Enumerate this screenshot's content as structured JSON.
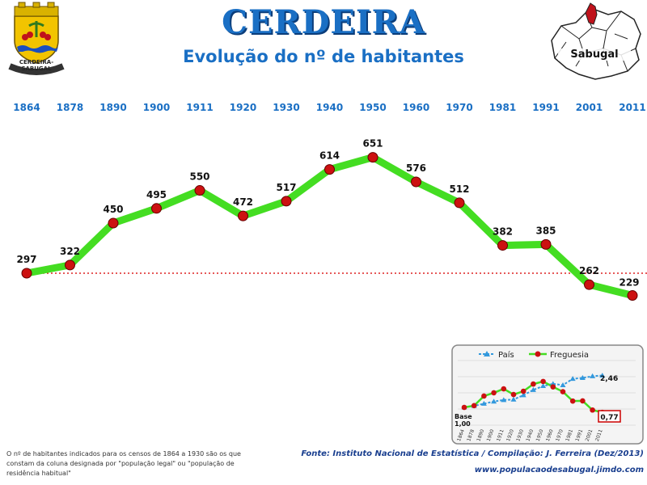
{
  "header": {
    "title": "CERDEIRA",
    "subtitle": "Evolução do nº de habitantes",
    "crest_text": "CERDEIRA-SABUGAL",
    "region_label": "Sabugal"
  },
  "colors": {
    "title": "#1a6fc4",
    "year_label": "#1a6fc4",
    "line": "#44dd22",
    "marker": "#cc1111",
    "reference_line": "#dd2222",
    "country_line": "#3399dd",
    "source_text": "#1a3f8f"
  },
  "chart_data": [
    {
      "type": "line",
      "title": "Evolução do nº de habitantes",
      "x": [
        "1864",
        "1878",
        "1890",
        "1900",
        "1911",
        "1920",
        "1930",
        "1940",
        "1950",
        "1960",
        "1970",
        "1981",
        "1991",
        "2001",
        "2011"
      ],
      "series": [
        {
          "name": "Freguesia",
          "values": [
            297,
            322,
            450,
            495,
            550,
            472,
            517,
            614,
            651,
            576,
            512,
            382,
            385,
            262,
            229
          ]
        }
      ],
      "reference_value": 297,
      "ylim": [
        200,
        700
      ],
      "grid": false
    },
    {
      "type": "line",
      "title": "",
      "x": [
        "1864",
        "1878",
        "1890",
        "1900",
        "1911",
        "1920",
        "1930",
        "1940",
        "1950",
        "1960",
        "1970",
        "1981",
        "1991",
        "2001",
        "2011"
      ],
      "series": [
        {
          "name": "País",
          "values": [
            1.0,
            1.07,
            1.17,
            1.27,
            1.34,
            1.36,
            1.56,
            1.8,
            1.98,
            2.08,
            2.02,
            2.31,
            2.35,
            2.43,
            2.46
          ]
        },
        {
          "name": "Freguesia",
          "values": [
            1.0,
            1.08,
            1.52,
            1.67,
            1.85,
            1.59,
            1.74,
            2.07,
            2.19,
            1.94,
            1.72,
            1.29,
            1.3,
            0.88,
            0.77
          ]
        }
      ],
      "base_label": "Base",
      "base_value": "1,00",
      "end_label_country": "2,46",
      "end_label_parish": "0,77",
      "ylim": [
        0.5,
        2.8
      ],
      "legend": "top"
    }
  ],
  "footer": {
    "note": "O nº de habitantes indicados para os censos de 1864 a 1930 são os que constam da coluna designada por \"população legal\" ou \"população de residência habitual\"",
    "source": "Fonte: Instituto Nacional de Estatística / Compilação: J. Ferreira (Dez/2013)",
    "website": "www.populacaodesabugal.jimdo.com"
  }
}
